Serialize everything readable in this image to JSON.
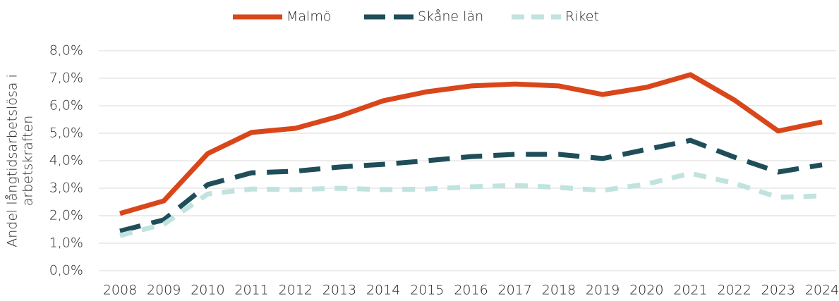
{
  "chart_data": {
    "type": "line",
    "ylabel": [
      "Andel långtidsarbetslösa i",
      "arbetskraften"
    ],
    "categories": [
      "2008",
      "2009",
      "2010",
      "2011",
      "2012",
      "2013",
      "2014",
      "2015",
      "2016",
      "2017",
      "2018",
      "2019",
      "2020",
      "2021",
      "2022",
      "2023",
      "2024"
    ],
    "series": [
      {
        "name": "Malmö",
        "color": "#d9461a",
        "dash": "solid",
        "values": [
          2.08,
          2.54,
          4.26,
          5.03,
          5.18,
          5.62,
          6.18,
          6.51,
          6.72,
          6.79,
          6.72,
          6.41,
          6.67,
          7.13,
          6.21,
          5.08,
          5.41
        ]
      },
      {
        "name": "Skåne län",
        "color": "#1f4e5a",
        "dash": "long",
        "values": [
          1.44,
          1.85,
          3.13,
          3.56,
          3.62,
          3.77,
          3.87,
          4.0,
          4.15,
          4.23,
          4.23,
          4.08,
          4.41,
          4.74,
          4.13,
          3.59,
          3.85
        ]
      },
      {
        "name": "Riket",
        "color": "#c1e3df",
        "dash": "short",
        "values": [
          1.28,
          1.69,
          2.79,
          2.97,
          2.95,
          3.0,
          2.95,
          2.97,
          3.05,
          3.1,
          3.03,
          2.92,
          3.15,
          3.54,
          3.18,
          2.67,
          2.72
        ]
      }
    ],
    "ylim": [
      0,
      8
    ],
    "yticks": [
      {
        "value": 0,
        "label": "0,0%"
      },
      {
        "value": 1,
        "label": "1,0%"
      },
      {
        "value": 2,
        "label": "2,0%"
      },
      {
        "value": 3,
        "label": "3,0%"
      },
      {
        "value": 4,
        "label": "4,0%"
      },
      {
        "value": 5,
        "label": "5,0%"
      },
      {
        "value": 6,
        "label": "6,0%"
      },
      {
        "value": 7,
        "label": "7,0%"
      },
      {
        "value": 8,
        "label": "8,0%"
      }
    ],
    "grid": true,
    "legend": "top"
  }
}
